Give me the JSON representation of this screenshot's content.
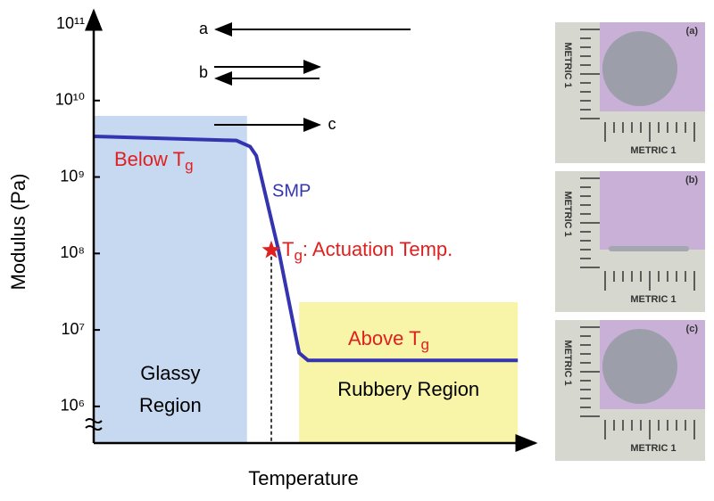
{
  "chart_data": {
    "type": "line",
    "y_label": "Modulus (Pa)",
    "x_label": "Temperature",
    "yscale": "log",
    "ylim": [
      350000,
      100000000000
    ],
    "xlim": [
      0,
      100
    ],
    "yticks": [
      {
        "value": 1000000,
        "label": "10⁶"
      },
      {
        "value": 10000000,
        "label": "10⁷"
      },
      {
        "value": 100000000,
        "label": "10⁸"
      },
      {
        "value": 1000000000,
        "label": "10⁹"
      },
      {
        "value": 10000000000,
        "label": "10¹⁰"
      },
      {
        "value": 100000000000,
        "label": "10¹¹"
      }
    ],
    "series": [
      {
        "name": "SMP",
        "color": "#3434b0",
        "x": [
          0,
          32.3,
          35.4,
          36.8,
          42,
          46.5,
          48.5,
          96
        ],
        "values": [
          3400000000,
          3000000000,
          2500000000,
          1900000000,
          100000000,
          5000000,
          4000000,
          4000000
        ]
      }
    ],
    "regions": [
      {
        "lines": [
          "Glassy",
          "Region"
        ],
        "color": "#c6d9f1",
        "x": [
          0,
          34.7
        ],
        "top": 6300000000
      },
      {
        "lines": [
          "Rubbery Region"
        ],
        "color": "#f8f4a8",
        "x": [
          46.5,
          96
        ],
        "top": 23000000
      }
    ],
    "tg_point": {
      "x": 40.2,
      "value": 110000000,
      "parts": [
        "T",
        "g",
        ": Actuation Temp."
      ],
      "color": "#e02020"
    },
    "annotations": [
      {
        "parts": [
          "Below T",
          "g"
        ]
      },
      {
        "parts": [
          "Above T",
          "g"
        ]
      }
    ],
    "arrows": [
      "a",
      "b",
      "c"
    ]
  },
  "photos": [
    {
      "label": "(a)",
      "texts": [
        "METRIC 1",
        "METRIC 1"
      ]
    },
    {
      "label": "(b)",
      "texts": [
        "METRIC 1",
        "METRIC 1"
      ]
    },
    {
      "label": "(c)",
      "texts": [
        "METRIC 1",
        "METRIC 1"
      ]
    }
  ]
}
